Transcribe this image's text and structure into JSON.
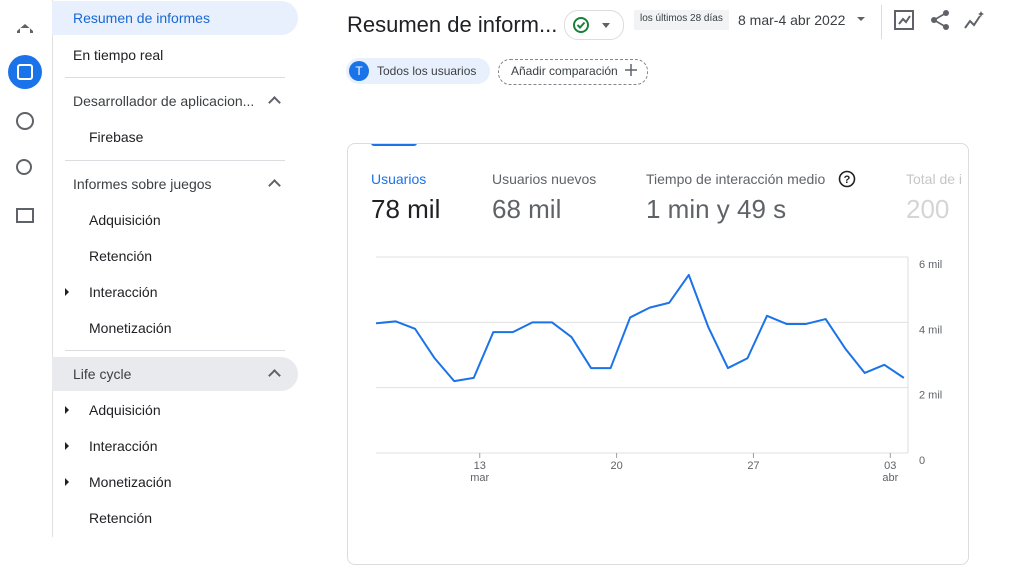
{
  "sidebar": {
    "items": [
      "Resumen de informes",
      "En tiempo real",
      "Desarrollador de aplicacion...",
      "Firebase",
      "Informes sobre juegos",
      "Adquisición",
      "Retención",
      "Interacción",
      "Monetización",
      "Life cycle",
      "Adquisición",
      "Interacción",
      "Monetización",
      "Retención"
    ]
  },
  "header": {
    "title": "Resumen de inform...",
    "date_range_label": "los últimos 28 días",
    "date_range": "8 mar-4 abr 2022"
  },
  "filters": {
    "avatar": "T",
    "segment": "Todos los usuarios",
    "compare": "Añadir comparación"
  },
  "metrics": [
    {
      "label": "Usuarios",
      "value": "78 mil"
    },
    {
      "label": "Usuarios nuevos",
      "value": "68 mil"
    },
    {
      "label": "Tiempo de interacción medio",
      "value": "1 min y 49 s"
    },
    {
      "label": "Total de i",
      "value": "200"
    }
  ],
  "chart": {
    "type": "line",
    "color": "#1a73e8",
    "categories": [
      null,
      null,
      null,
      null,
      null,
      "13",
      null,
      null,
      null,
      null,
      null,
      null,
      "20",
      null,
      null,
      null,
      null,
      null,
      null,
      "27",
      null,
      null,
      null,
      null,
      null,
      null,
      "03",
      null
    ],
    "month_labels": [
      null,
      null,
      null,
      null,
      null,
      "mar",
      null,
      null,
      null,
      null,
      null,
      null,
      null,
      null,
      null,
      null,
      null,
      null,
      null,
      null,
      null,
      null,
      null,
      null,
      null,
      null,
      "abr",
      null
    ],
    "values": [
      3.97,
      4.03,
      3.8,
      2.9,
      2.2,
      2.3,
      3.7,
      3.7,
      4.0,
      4.0,
      3.55,
      2.6,
      2.6,
      4.15,
      4.45,
      4.6,
      5.45,
      3.85,
      2.6,
      2.9,
      4.2,
      3.95,
      3.95,
      4.1,
      3.2,
      2.45,
      2.7,
      2.3
    ],
    "ylim": [
      0,
      6
    ],
    "yticks": [
      0,
      {
        "value": 2,
        "label": "2 mil"
      },
      {
        "value": 4,
        "label": "4 mil"
      },
      {
        "value": 6,
        "label": "6 mil"
      }
    ],
    "grid": true
  }
}
